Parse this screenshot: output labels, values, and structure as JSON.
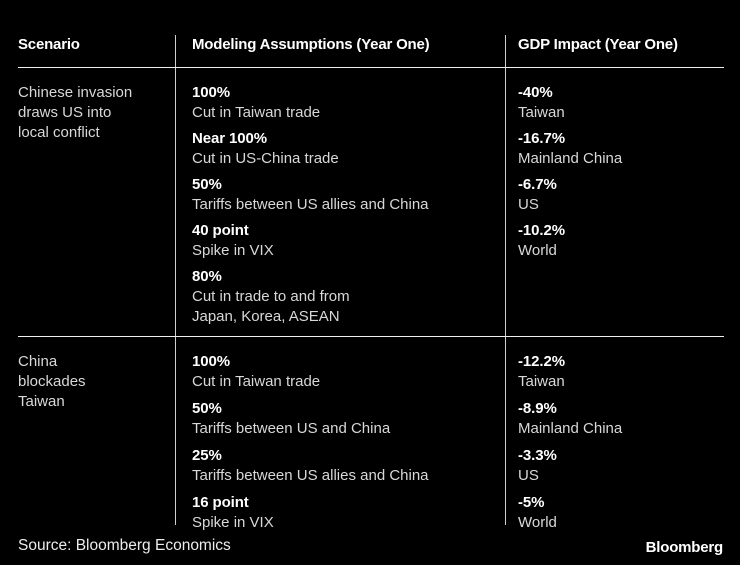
{
  "chart_data": {
    "type": "table",
    "columns": [
      "Scenario",
      "Modeling Assumptions (Year One)",
      "GDP Impact (Year One)"
    ],
    "rows": [
      {
        "scenario": "Chinese invasion\ndraws US into\nlocal conflict",
        "assumptions": [
          {
            "value": "100%",
            "desc": "Cut in Taiwan trade"
          },
          {
            "value": "Near 100%",
            "desc": "Cut in US-China trade"
          },
          {
            "value": "50%",
            "desc": "Tariffs between US allies and China"
          },
          {
            "value": "40 point",
            "desc": "Spike in VIX"
          },
          {
            "value": "80%",
            "desc": "Cut in trade to and from\nJapan, Korea, ASEAN"
          }
        ],
        "impacts": [
          {
            "value": "-40%",
            "region": "Taiwan"
          },
          {
            "value": "-16.7%",
            "region": "Mainland China"
          },
          {
            "value": "-6.7%",
            "region": "US"
          },
          {
            "value": "-10.2%",
            "region": "World"
          }
        ]
      },
      {
        "scenario": "China\nblockades\nTaiwan",
        "assumptions": [
          {
            "value": "100%",
            "desc": "Cut in Taiwan trade"
          },
          {
            "value": "50%",
            "desc": "Tariffs between US and China"
          },
          {
            "value": "25%",
            "desc": "Tariffs between US allies and China"
          },
          {
            "value": "16 point",
            "desc": "Spike in VIX"
          }
        ],
        "impacts": [
          {
            "value": "-12.2%",
            "region": "Taiwan"
          },
          {
            "value": "-8.9%",
            "region": "Mainland China"
          },
          {
            "value": "-3.3%",
            "region": "US"
          },
          {
            "value": "-5%",
            "region": "World"
          }
        ]
      }
    ]
  },
  "footer": {
    "source": "Source: Bloomberg Economics",
    "brand": "Bloomberg"
  },
  "colors": {
    "background": "#000000",
    "text_bold": "#ffffff",
    "text_regular": "#d8d8d8",
    "rule": "#f0f0f0",
    "divider": "#cfcfcf"
  }
}
